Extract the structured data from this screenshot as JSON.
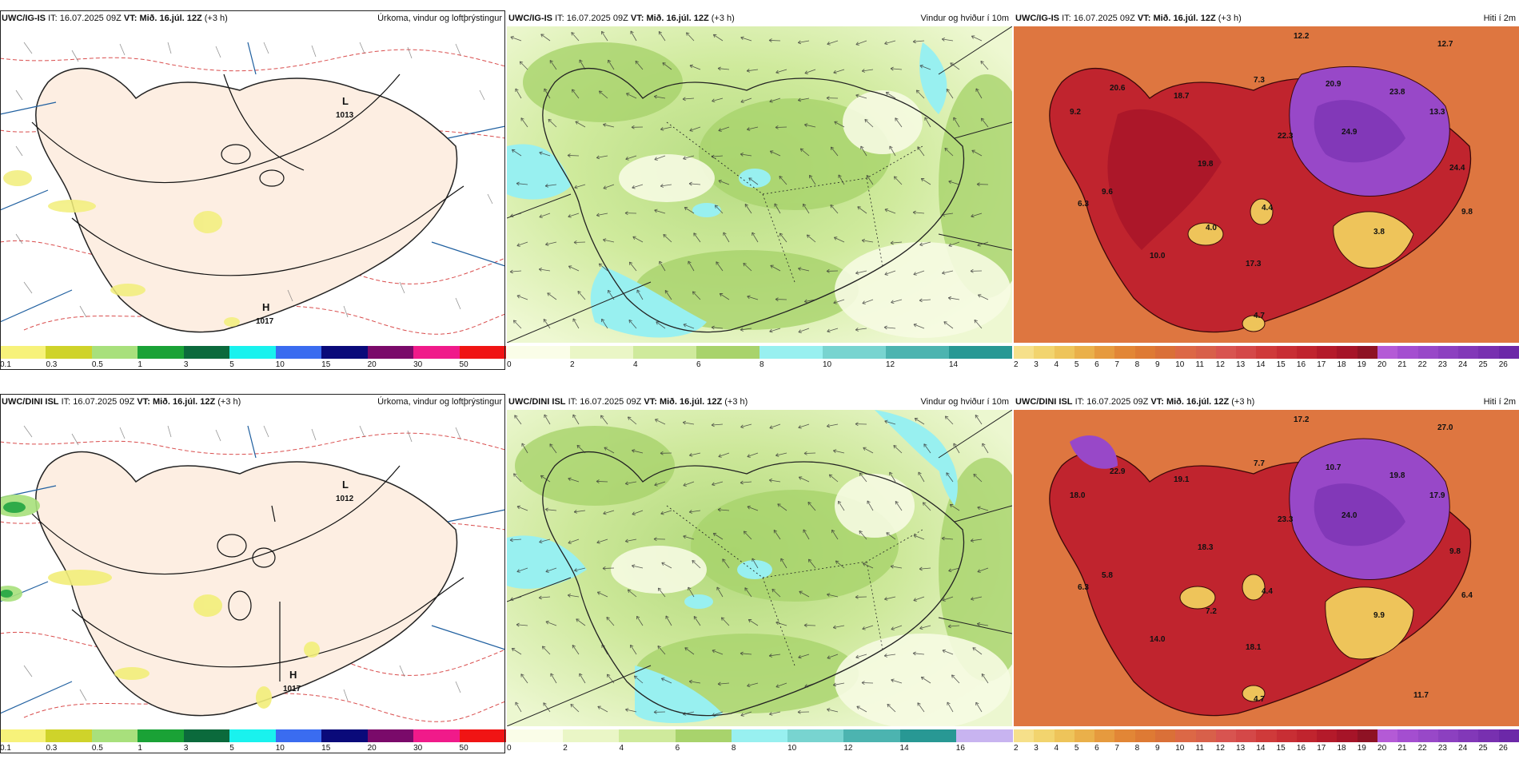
{
  "rows": [
    {
      "model": "UWC/IG-IS",
      "it_label": "IT:",
      "it_value": "16.07.2025 09Z",
      "vt_label": "VT:",
      "vt_value": "Mið. 16.júl. 12Z",
      "lead": "(+3 h)",
      "panels": [
        {
          "type": "precip",
          "title": "Úrkoma, vindur og loftþrýstingur",
          "pressure_centers": [
            {
              "kind": "L",
              "value": "1013"
            },
            {
              "kind": "H",
              "value": "1017"
            }
          ],
          "legend_ticks": [
            "0.1",
            "0.3",
            "0.5",
            "1",
            "3",
            "5",
            "10",
            "15",
            "20",
            "30",
            "50"
          ],
          "legend_colors": [
            "#f7f27a",
            "#cfd32a",
            "#a8e07c",
            "#1aa236",
            "#0b6a3c",
            "#19f2ee",
            "#3a6cf0",
            "#0a0a7a",
            "#7a0a6a",
            "#f01a8a",
            "#f01414"
          ]
        },
        {
          "type": "wind",
          "title": "Vindur og hviður í 10m",
          "legend_ticks": [
            "0",
            "2",
            "4",
            "6",
            "8",
            "10",
            "12",
            "14"
          ],
          "legend_colors": [
            "#fafde8",
            "#eaf6c6",
            "#cfea9c",
            "#a8d36c",
            "#98f0f0",
            "#78d4d0",
            "#4cb4b0",
            "#289894"
          ]
        },
        {
          "type": "temp",
          "title": "Hiti í 2m",
          "labels": [
            "12.2",
            "12.7",
            "20.6",
            "18.7",
            "9.2",
            "7.3",
            "20.9",
            "23.8",
            "24.9",
            "22.3",
            "13.3",
            "19.8",
            "24.4",
            "6.3",
            "9.6",
            "4.4",
            "4.0",
            "9.8",
            "3.8",
            "10.0",
            "17.3",
            "4.7"
          ],
          "legend_ticks": [
            "2",
            "3",
            "4",
            "5",
            "6",
            "7",
            "8",
            "9",
            "10",
            "11",
            "12",
            "13",
            "14",
            "15",
            "16",
            "17",
            "18",
            "19",
            "20",
            "21",
            "22",
            "23",
            "24",
            "25",
            "26"
          ]
        }
      ]
    },
    {
      "model": "UWC/DINI ISL",
      "it_label": "IT:",
      "it_value": "16.07.2025 09Z",
      "vt_label": "VT:",
      "vt_value": "Mið. 16.júl. 12Z",
      "lead": "(+3 h)",
      "panels": [
        {
          "type": "precip",
          "title": "Úrkoma, vindur og loftþrýstingur",
          "pressure_centers": [
            {
              "kind": "L",
              "value": "1012"
            },
            {
              "kind": "H",
              "value": "1017"
            }
          ],
          "legend_ticks": [
            "0.1",
            "0.3",
            "0.5",
            "1",
            "3",
            "5",
            "10",
            "15",
            "20",
            "30",
            "50"
          ],
          "legend_colors": [
            "#f7f27a",
            "#cfd32a",
            "#a8e07c",
            "#1aa236",
            "#0b6a3c",
            "#19f2ee",
            "#3a6cf0",
            "#0a0a7a",
            "#7a0a6a",
            "#f01a8a",
            "#f01414"
          ]
        },
        {
          "type": "wind",
          "title": "Vindur og hviður í 10m",
          "legend_ticks": [
            "0",
            "2",
            "4",
            "6",
            "8",
            "10",
            "12",
            "14",
            "16"
          ],
          "legend_colors": [
            "#fafde8",
            "#eaf6c6",
            "#cfea9c",
            "#a8d36c",
            "#98f0f0",
            "#78d4d0",
            "#4cb4b0",
            "#289894",
            "#c8b4f0"
          ]
        },
        {
          "type": "temp",
          "title": "Hiti í 2m",
          "labels": [
            "17.2",
            "27.0",
            "22.9",
            "19.1",
            "18.0",
            "7.7",
            "10.7",
            "19.8",
            "24.0",
            "23.3",
            "17.9",
            "18.3",
            "9.8",
            "6.3",
            "5.8",
            "4.4",
            "7.2",
            "6.4",
            "9.9",
            "14.0",
            "18.1",
            "4.7",
            "11.7"
          ],
          "legend_ticks": [
            "2",
            "3",
            "4",
            "5",
            "6",
            "7",
            "8",
            "9",
            "10",
            "11",
            "12",
            "13",
            "14",
            "15",
            "16",
            "17",
            "18",
            "19",
            "20",
            "21",
            "22",
            "23",
            "24",
            "25",
            "26"
          ]
        }
      ]
    }
  ],
  "temp_legend_colors": [
    "#f6e08a",
    "#f2d46e",
    "#eec45a",
    "#eab04a",
    "#e69a3e",
    "#e28636",
    "#de7a34",
    "#da7038",
    "#dc6846",
    "#d8604a",
    "#d85450",
    "#d44848",
    "#cf3a3a",
    "#c82e34",
    "#c0242e",
    "#b41a2a",
    "#a61428",
    "#8e1224",
    "#b45ad6",
    "#a44ed0",
    "#9848c8",
    "#8c40c0",
    "#8238b8",
    "#7830b0",
    "#6c28a8"
  ]
}
